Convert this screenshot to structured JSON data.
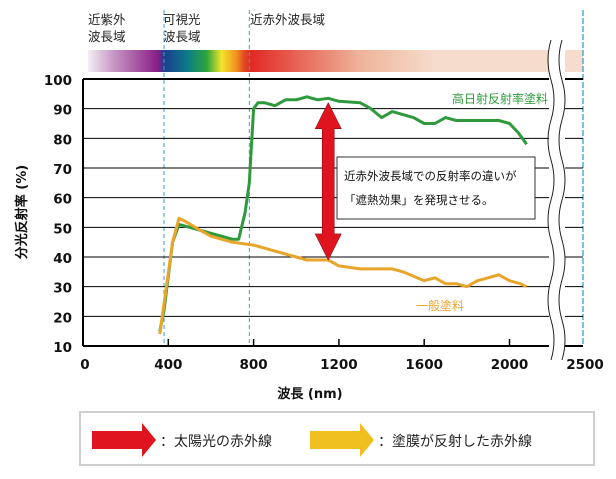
{
  "chart_data": {
    "type": "line",
    "xlabel": "波長 (nm)",
    "ylabel": "分光反射率 (%)",
    "xlim": [
      0,
      2500
    ],
    "ylim": [
      10,
      100
    ],
    "x_ticks": [
      "0",
      "400",
      "800",
      "1200",
      "1600",
      "2000",
      "2500"
    ],
    "y_ticks": [
      "10",
      "20",
      "30",
      "40",
      "50",
      "60",
      "70",
      "80",
      "90",
      "100"
    ],
    "grid": "horizontal",
    "axis_break": "between 2100 and 2500",
    "regions": [
      {
        "label_lines": [
          "近紫外",
          "波長域"
        ],
        "range": [
          0,
          380
        ]
      },
      {
        "label_lines": [
          "可視光",
          "波長域"
        ],
        "range": [
          380,
          780
        ]
      },
      {
        "label_lines": [
          "近赤外波長域"
        ],
        "range": [
          780,
          2500
        ]
      }
    ],
    "series": [
      {
        "name": "高日射反射率塗料",
        "color": "#2e9a3c",
        "x": [
          360,
          380,
          420,
          450,
          500,
          550,
          600,
          650,
          700,
          730,
          760,
          780,
          800,
          820,
          850,
          900,
          950,
          1000,
          1050,
          1100,
          1150,
          1200,
          1300,
          1350,
          1400,
          1450,
          1500,
          1550,
          1600,
          1650,
          1700,
          1750,
          1800,
          1850,
          1900,
          1950,
          2000,
          2040,
          2080
        ],
        "y": [
          15,
          22,
          45,
          51,
          50,
          49,
          48,
          47,
          46,
          46,
          55,
          65,
          90,
          92,
          92,
          91,
          93,
          93,
          94,
          93,
          93.5,
          92.5,
          92,
          90,
          87,
          89,
          88,
          87,
          85,
          85,
          87,
          86,
          86,
          86,
          86,
          86,
          85,
          82,
          78
        ]
      },
      {
        "name": "一般塗料",
        "color": "#e8a52a",
        "x": [
          360,
          420,
          450,
          480,
          550,
          600,
          700,
          800,
          900,
          1000,
          1050,
          1100,
          1150,
          1200,
          1300,
          1400,
          1450,
          1500,
          1600,
          1650,
          1700,
          1750,
          1800,
          1850,
          1900,
          1950,
          2000,
          2050,
          2080
        ],
        "y": [
          14,
          45,
          53,
          52,
          49,
          47,
          45,
          44,
          42,
          40,
          39,
          39,
          39,
          37,
          36,
          36,
          36,
          35,
          32,
          33,
          31,
          31,
          30,
          32,
          33,
          34,
          32,
          31,
          30
        ]
      }
    ],
    "annotation": {
      "lines": [
        "近赤外波長域での反射率の違いが",
        "「遮熱効果」を発現させる。"
      ],
      "arrow_x": 1150,
      "arrow_y_range": [
        39,
        92
      ],
      "arrow_color": "#e0141e"
    },
    "legend": {
      "placement": "bottom",
      "items": [
        {
          "label": "：太陽光の赤外線",
          "color": "#e0141e"
        },
        {
          "label": "：塗膜が反射した赤外線",
          "color": "#f0c020"
        }
      ]
    }
  }
}
